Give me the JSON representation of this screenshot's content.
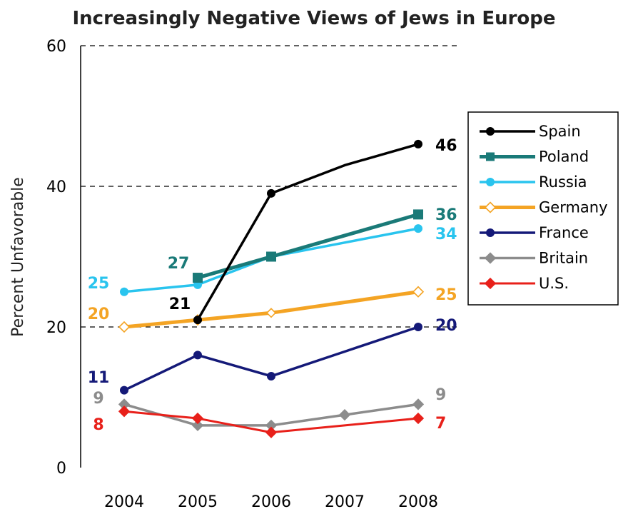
{
  "chart_data": {
    "type": "line",
    "title": "Increasingly Negative Views of Jews in Europe",
    "xlabel": "",
    "ylabel": "Percent Unfavorable",
    "x": [
      "2004",
      "2005",
      "2006",
      "2007",
      "2008"
    ],
    "ylim": [
      0,
      60
    ],
    "yticks": [
      "0",
      "20",
      "40",
      "60"
    ],
    "grid": "dashed at 20, 40, 60",
    "legend_position": "right",
    "series": [
      {
        "name": "Spain",
        "color": "#000000",
        "marker": "circle",
        "values": [
          null,
          21,
          39,
          43,
          46
        ],
        "labels": [
          {
            "i": 1,
            "text": "21"
          },
          {
            "i": 4,
            "text": "46"
          }
        ]
      },
      {
        "name": "Poland",
        "color": "#1a7a78",
        "marker": "square",
        "values": [
          null,
          27,
          30,
          33,
          36
        ],
        "labels": [
          {
            "i": 1,
            "text": "27"
          },
          {
            "i": 4,
            "text": "36"
          }
        ]
      },
      {
        "name": "Russia",
        "color": "#29c4ee",
        "marker": "circle",
        "values": [
          25,
          26,
          30,
          32,
          34
        ],
        "labels": [
          {
            "i": 0,
            "text": "25"
          },
          {
            "i": 4,
            "text": "34"
          }
        ]
      },
      {
        "name": "Germany",
        "color": "#f4a424",
        "marker": "diamond-open",
        "values": [
          20,
          21,
          22,
          23.5,
          25
        ],
        "labels": [
          {
            "i": 0,
            "text": "20"
          },
          {
            "i": 4,
            "text": "25"
          }
        ]
      },
      {
        "name": "France",
        "color": "#141978",
        "marker": "circle",
        "values": [
          11,
          16,
          13,
          16.5,
          20
        ],
        "labels": [
          {
            "i": 0,
            "text": "11"
          },
          {
            "i": 4,
            "text": "20"
          }
        ]
      },
      {
        "name": "Britain",
        "color": "#8c8c8c",
        "marker": "diamond",
        "values": [
          9,
          6,
          6,
          7.5,
          9
        ],
        "labels": [
          {
            "i": 0,
            "text": "9"
          },
          {
            "i": 4,
            "text": "9"
          }
        ]
      },
      {
        "name": "U.S.",
        "color": "#e8201a",
        "marker": "diamond",
        "values": [
          8,
          7,
          5,
          6,
          7
        ],
        "labels": [
          {
            "i": 0,
            "text": "8"
          },
          {
            "i": 4,
            "text": "7"
          }
        ]
      }
    ]
  }
}
